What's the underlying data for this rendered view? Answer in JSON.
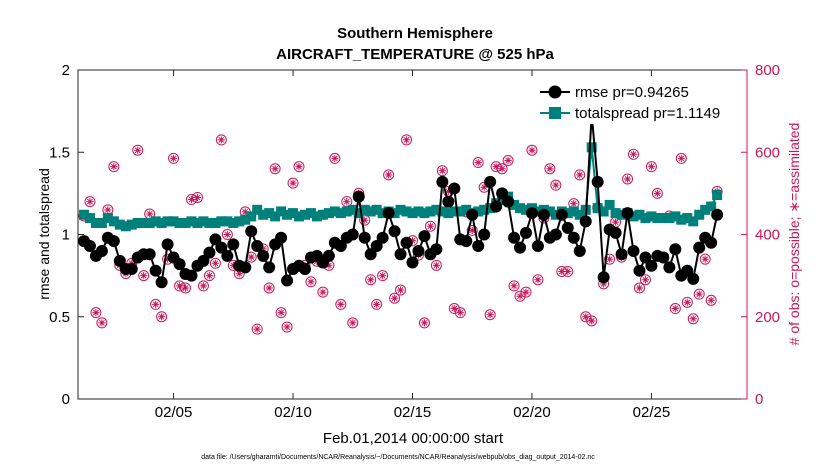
{
  "chart_data": {
    "type": "line",
    "title": "Southern Hemisphere",
    "subtitle": "AIRCRAFT_TEMPERATURE @ 525 hPa",
    "xlabel": "Feb.01,2014 00:00:00 start",
    "ylabel_left": "rmse and totalspread",
    "ylabel_right": "# of obs: o=possible; ∗=assimilated",
    "footnote": "data file: /Users/gharamti/Documents/NCAR/Reanalysis/~/Documents/NCAR/Reanalysis/webpub/obs_diag_output_2014-02.nc",
    "xlim": [
      1,
      29
    ],
    "ylim_left": [
      0,
      2
    ],
    "ylim_right": [
      0,
      800
    ],
    "x_ticks": [
      5,
      10,
      15,
      20,
      25
    ],
    "x_tick_labels": [
      "02/05",
      "02/10",
      "02/15",
      "02/20",
      "02/25"
    ],
    "y_ticks_left": [
      0,
      0.5,
      1,
      1.5,
      2
    ],
    "y_tick_labels_left": [
      "0",
      "0.5",
      "1",
      "1.5",
      "2"
    ],
    "y_ticks_right": [
      0,
      200,
      400,
      600,
      800
    ],
    "y_tick_labels_right": [
      "0",
      "200",
      "400",
      "600",
      "800"
    ],
    "x_start": 1.25,
    "x_step": 0.25,
    "colors": {
      "rmse": "#000000",
      "spread": "#00807a",
      "obs": "#c8175d"
    },
    "series": [
      {
        "name": "rmse",
        "legend": "rmse pr=0.94265",
        "values": [
          0.96,
          0.93,
          0.87,
          0.9,
          0.98,
          0.96,
          0.84,
          0.79,
          0.79,
          0.86,
          0.88,
          0.88,
          0.78,
          0.71,
          0.94,
          0.86,
          0.82,
          0.76,
          0.75,
          0.81,
          0.84,
          0.89,
          0.97,
          0.92,
          0.87,
          0.94,
          0.81,
          0.8,
          1.02,
          0.93,
          0.87,
          0.8,
          0.94,
          0.98,
          0.72,
          0.79,
          0.81,
          0.79,
          0.86,
          0.87,
          0.83,
          0.87,
          0.95,
          0.93,
          0.98,
          1.0,
          1.23,
          0.98,
          0.88,
          0.93,
          0.98,
          1.13,
          1.02,
          0.88,
          0.95,
          0.83,
          0.9,
          0.99,
          0.88,
          0.91,
          1.32,
          1.2,
          1.28,
          0.97,
          0.96,
          1.12,
          0.93,
          1.0,
          1.32,
          1.17,
          1.25,
          1.2,
          0.98,
          0.92,
          1.01,
          1.13,
          0.93,
          1.12,
          0.98,
          1.0,
          1.12,
          1.04,
          0.98,
          0.9,
          1.08,
          1.73,
          1.32,
          0.74,
          1.03,
          1.01,
          0.88,
          1.13,
          0.9,
          0.78,
          0.86,
          0.81,
          0.87,
          0.86,
          0.8,
          0.91,
          0.75,
          0.78,
          0.73,
          0.92,
          0.98,
          0.95,
          1.12
        ]
      },
      {
        "name": "totalspread",
        "legend": "totalspread pr=1.1149",
        "values": [
          1.12,
          1.1,
          1.07,
          1.07,
          1.1,
          1.08,
          1.06,
          1.05,
          1.06,
          1.07,
          1.07,
          1.07,
          1.08,
          1.07,
          1.08,
          1.08,
          1.07,
          1.07,
          1.08,
          1.07,
          1.08,
          1.07,
          1.07,
          1.08,
          1.08,
          1.07,
          1.08,
          1.09,
          1.11,
          1.15,
          1.12,
          1.13,
          1.11,
          1.14,
          1.12,
          1.13,
          1.11,
          1.12,
          1.13,
          1.11,
          1.12,
          1.13,
          1.14,
          1.13,
          1.14,
          1.15,
          1.13,
          1.15,
          1.14,
          1.15,
          1.13,
          1.14,
          1.13,
          1.15,
          1.14,
          1.13,
          1.14,
          1.13,
          1.14,
          1.15,
          1.14,
          1.13,
          1.14,
          1.14,
          1.15,
          1.13,
          1.14,
          1.15,
          1.16,
          1.19,
          1.21,
          1.23,
          1.18,
          1.16,
          1.15,
          1.16,
          1.14,
          1.15,
          1.14,
          1.12,
          1.14,
          1.13,
          1.14,
          1.12,
          1.15,
          1.53,
          1.16,
          1.14,
          1.18,
          1.13,
          1.12,
          1.13,
          1.11,
          1.12,
          1.1,
          1.11,
          1.1,
          1.1,
          1.1,
          1.11,
          1.09,
          1.1,
          1.08,
          1.12,
          1.15,
          1.17,
          1.24
        ]
      }
    ],
    "obs_counts": [
      445,
      480,
      210,
      185,
      460,
      565,
      325,
      305,
      330,
      605,
      300,
      450,
      230,
      200,
      340,
      585,
      275,
      270,
      485,
      490,
      275,
      300,
      330,
      630,
      400,
      325,
      305,
      455,
      345,
      170,
      365,
      270,
      560,
      210,
      175,
      525,
      565,
      325,
      285,
      335,
      260,
      325,
      585,
      230,
      480,
      185,
      500,
      435,
      290,
      230,
      300,
      545,
      245,
      265,
      630,
      385,
      350,
      185,
      420,
      325,
      555,
      505,
      220,
      210,
      455,
      410,
      575,
      515,
      205,
      565,
      560,
      580,
      275,
      250,
      260,
      605,
      290,
      440,
      560,
      520,
      310,
      310,
      475,
      545,
      200,
      190,
      465,
      280,
      340,
      430,
      345,
      535,
      595,
      270,
      290,
      565,
      500,
      345,
      445,
      220,
      585,
      235,
      195,
      255,
      340,
      240,
      505
    ]
  }
}
